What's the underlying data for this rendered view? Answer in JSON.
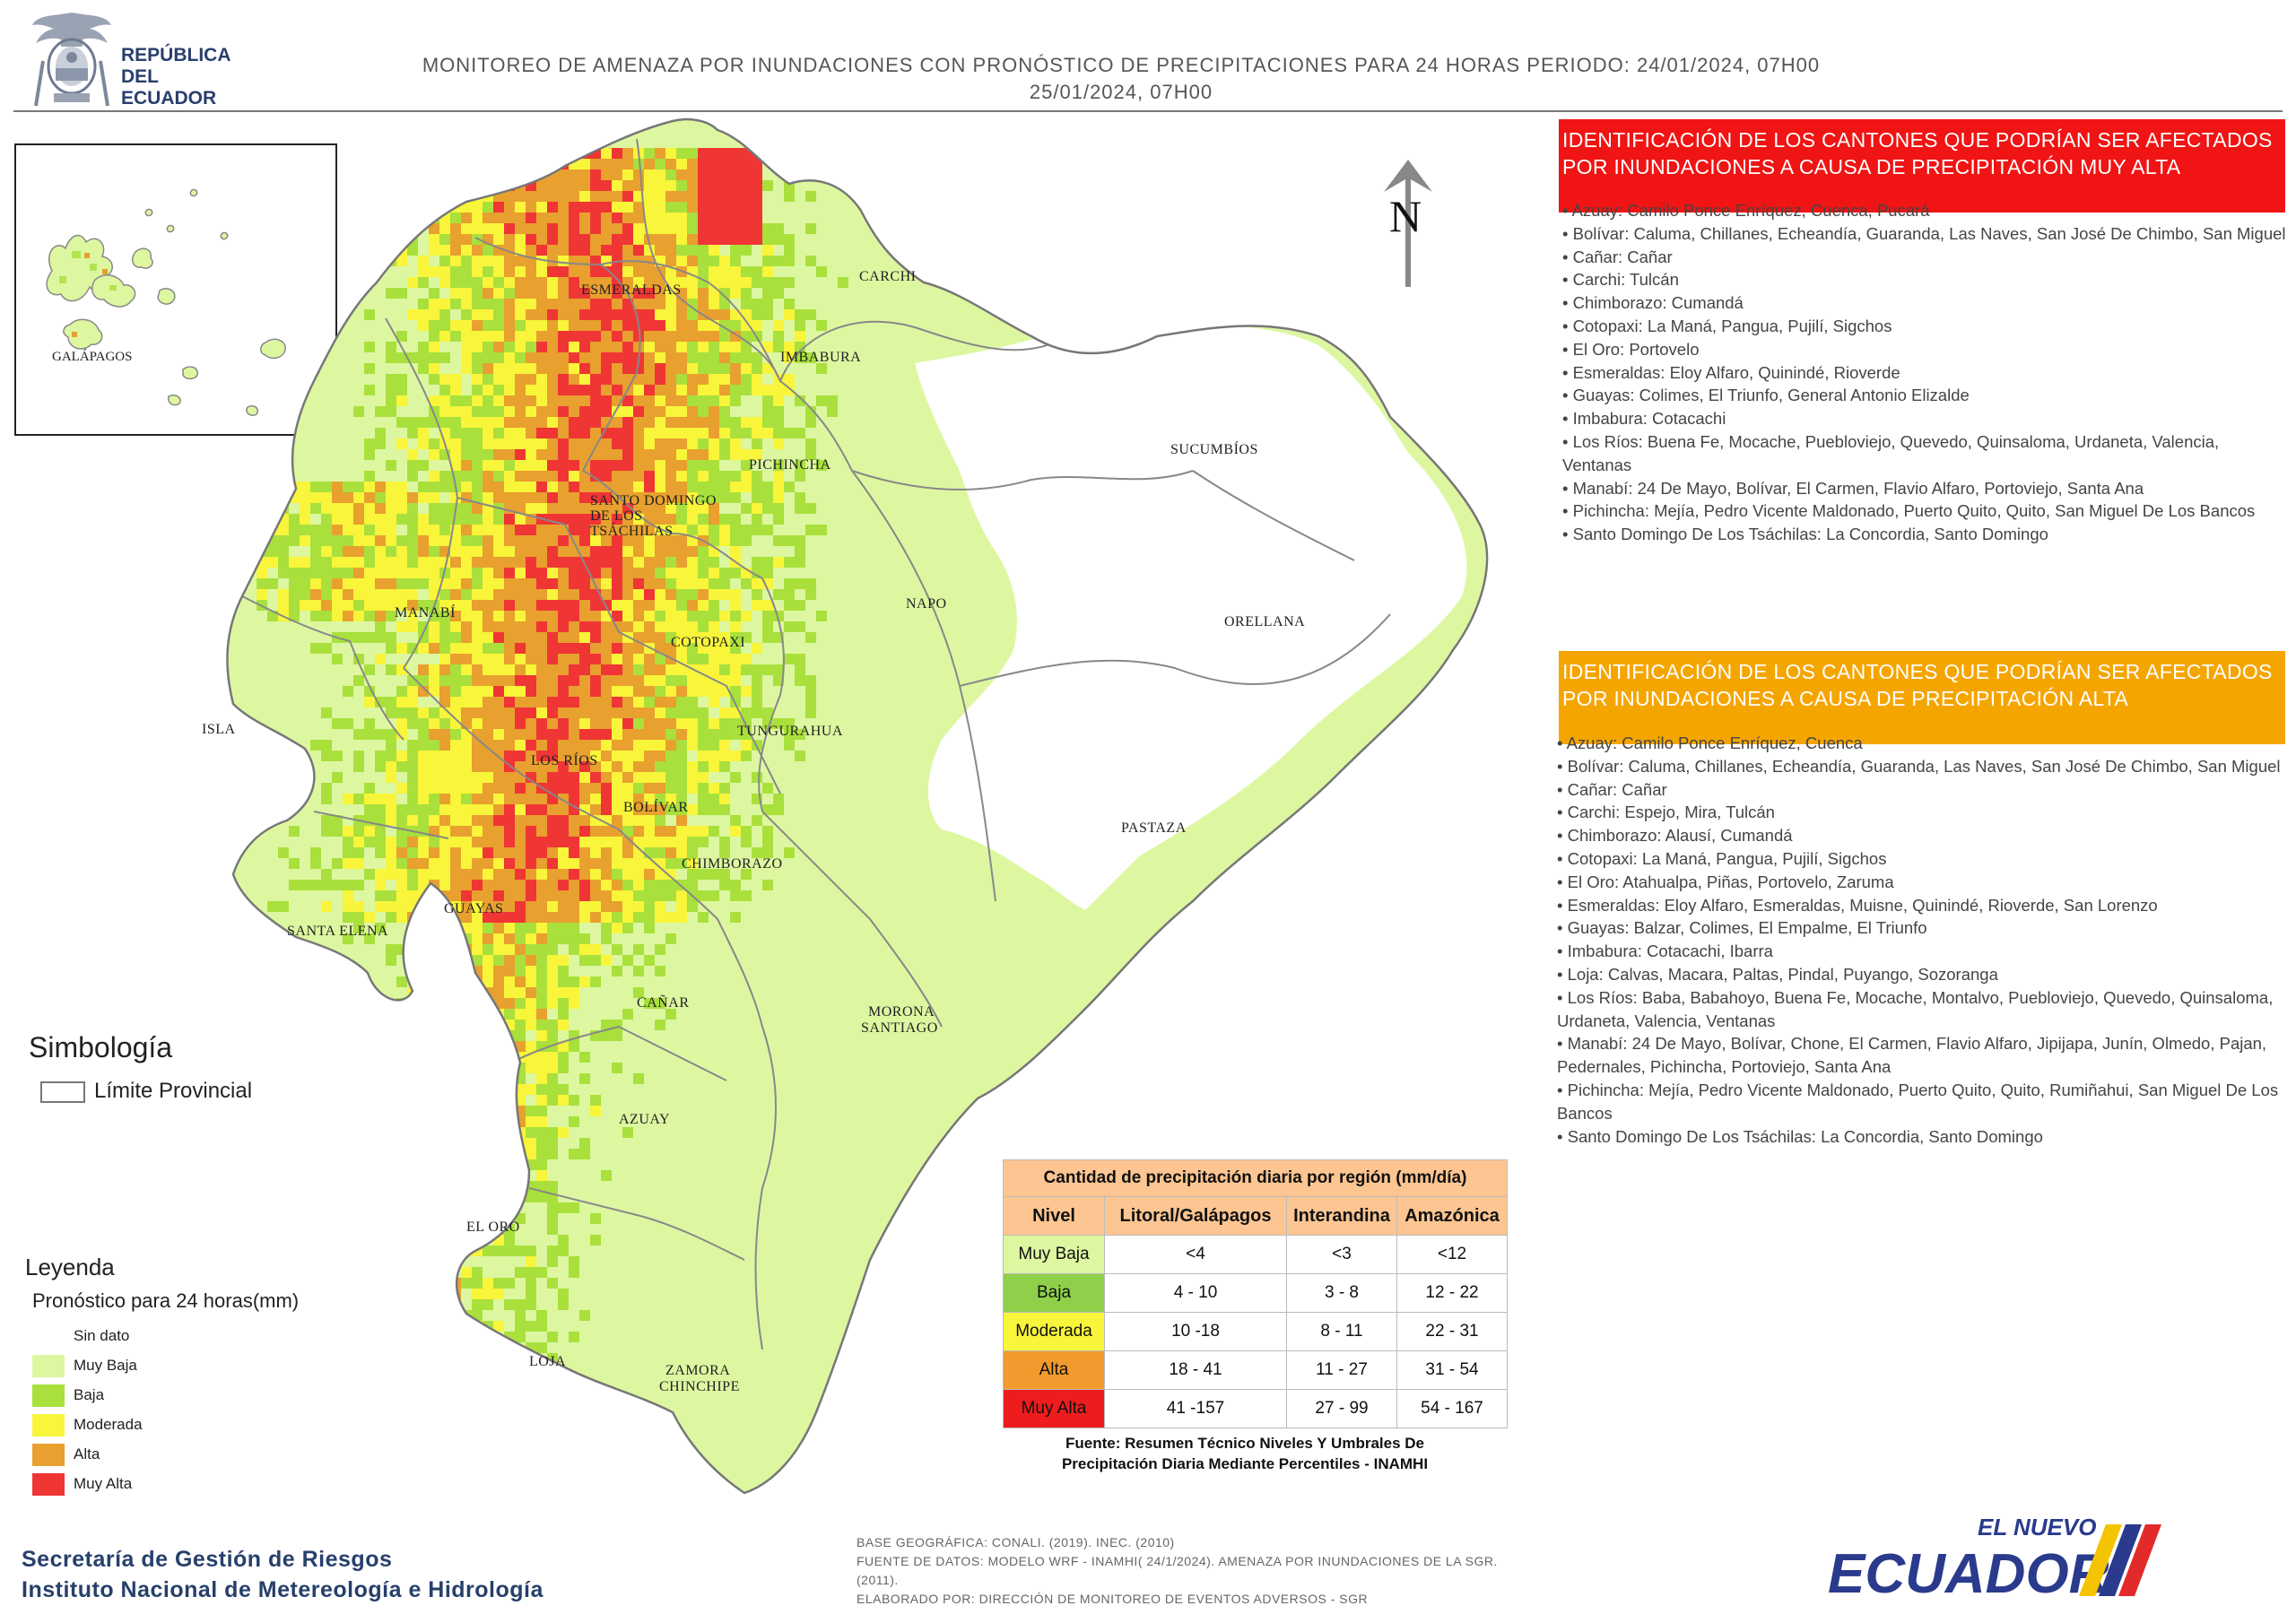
{
  "header": {
    "logo_text_line1": "REPÚBLICA",
    "logo_text_line2": "DEL ECUADOR",
    "title_line1": "MONITOREO DE AMENAZA POR INUNDACIONES  CON PRONÓSTICO DE  PRECIPITACIONES PARA 24 HORAS  PERIODO: 24/01/2024, 07H00",
    "title_line2": "25/01/2024, 07H00"
  },
  "map": {
    "inset_label": "GALÁPAGOS",
    "north_label": "N",
    "province_labels": [
      "ESMERALDAS",
      "CARCHI",
      "IMBABURA",
      "PICHINCHA",
      "SANTO DOMINGO",
      "DE LOS",
      "TSÁCHILAS",
      "SUCUMBÍOS",
      "MANABÍ",
      "COTOPAXI",
      "NAPO",
      "ORELLANA",
      "ISLA",
      "LOS RÍOS",
      "TUNGURAHUA",
      "BOLÍVAR",
      "CHIMBORAZO",
      "PASTAZA",
      "GUAYAS",
      "SANTA ELENA",
      "CAÑAR",
      "MORONA",
      "SANTIAGO",
      "AZUAY",
      "EL ORO",
      "LOJA",
      "ZAMORA",
      "CHINCHIPE"
    ],
    "colors": {
      "muy_baja": "#ddf7a1",
      "baja": "#a9e03c",
      "moderada": "#f8f53a",
      "alta": "#e8a02e",
      "muy_alta": "#f03535",
      "sin_dato": "#ffffff",
      "border": "#888888"
    }
  },
  "panel_red": {
    "title": "IDENTIFICACIÓN DE LOS CANTONES QUE PODRÍAN SER AFECTADOS POR INUNDACIONES  A CAUSA DE PRECIPITACIÓN MUY ALTA",
    "items": [
      "• Azuay: Camilo Ponce Enríquez, Cuenca, Pucará",
      "• Bolívar: Caluma, Chillanes, Echeandía, Guaranda, Las Naves, San José De Chimbo, San Miguel",
      "• Cañar: Cañar",
      "• Carchi: Tulcán",
      "• Chimborazo: Cumandá",
      "• Cotopaxi: La Maná, Pangua, Pujilí, Sigchos",
      "• El Oro: Portovelo",
      "• Esmeraldas: Eloy Alfaro, Quinindé, Rioverde",
      "• Guayas: Colimes, El Triunfo, General Antonio Elizalde",
      "• Imbabura: Cotacachi",
      "• Los Ríos: Buena Fe, Mocache, Puebloviejo, Quevedo, Quinsaloma, Urdaneta, Valencia, Ventanas",
      "• Manabí: 24 De Mayo, Bolívar, El Carmen, Flavio Alfaro, Portoviejo, Santa Ana",
      "• Pichincha: Mejía, Pedro Vicente Maldonado, Puerto Quito, Quito, San Miguel De Los Bancos",
      "• Santo Domingo De Los Tsáchilas: La Concordia, Santo Domingo"
    ]
  },
  "panel_orange": {
    "title": "IDENTIFICACIÓN DE LOS CANTONES QUE  PODRÍAN SER AFECTADOS POR INUNDACIONES  A CAUSA DE PRECIPITACIÓN  ALTA",
    "items": [
      "• Azuay: Camilo Ponce Enríquez, Cuenca",
      "• Bolívar: Caluma, Chillanes, Echeandía, Guaranda, Las Naves, San José De Chimbo, San Miguel",
      "• Cañar: Cañar",
      "• Carchi: Espejo, Mira, Tulcán",
      "• Chimborazo: Alausí, Cumandá",
      "• Cotopaxi: La Maná, Pangua, Pujilí, Sigchos",
      "• El Oro: Atahualpa, Piñas, Portovelo, Zaruma",
      "• Esmeraldas: Eloy Alfaro, Esmeraldas, Muisne, Quinindé, Rioverde, San Lorenzo",
      "• Guayas: Balzar, Colimes, El Empalme, El Triunfo",
      "• Imbabura: Cotacachi, Ibarra",
      "• Loja: Calvas, Macara, Paltas, Pindal, Puyango, Sozoranga",
      "• Los Ríos: Baba, Babahoyo, Buena Fe, Mocache, Montalvo, Puebloviejo, Quevedo, Quinsaloma, Urdaneta, Valencia, Ventanas",
      "• Manabí: 24 De Mayo, Bolívar, Chone, El Carmen, Flavio Alfaro, Jipijapa, Junín, Olmedo, Pajan, Pedernales, Pichincha, Portoviejo, Santa Ana",
      "• Pichincha: Mejía, Pedro Vicente Maldonado, Puerto Quito, Quito, Rumiñahui, San Miguel De Los Bancos",
      "• Santo Domingo De Los Tsáchilas: La Concordia, Santo Domingo"
    ]
  },
  "simbologia": {
    "title": "Simbología",
    "limite_label": "Límite Provincial"
  },
  "leyenda": {
    "title": "Leyenda",
    "subtitle": "Pronóstico para 24 horas(mm)",
    "items": [
      {
        "label": "Sin dato",
        "color": "#ffffff"
      },
      {
        "label": "Muy Baja",
        "color": "#ddf7a1"
      },
      {
        "label": "Baja",
        "color": "#a9e03c"
      },
      {
        "label": "Moderada",
        "color": "#f8f53a"
      },
      {
        "label": "Alta",
        "color": "#e8a02e"
      },
      {
        "label": "Muy Alta",
        "color": "#f03535"
      }
    ]
  },
  "thresholds": {
    "title": "Cantidad de precipitación diaria por región (mm/día)",
    "columns": [
      "Nivel",
      "Litoral/Galápagos",
      "Interandina",
      "Amazónica"
    ],
    "rows": [
      {
        "nivel": "Muy Baja",
        "color": "#ddf7a1",
        "litoral": "<4",
        "interandina": "<3",
        "amazonica": "<12"
      },
      {
        "nivel": "Baja",
        "color": "#8fd04a",
        "litoral": "4 - 10",
        "interandina": "3 - 8",
        "amazonica": "12 - 22"
      },
      {
        "nivel": "Moderada",
        "color": "#f8f53a",
        "litoral": "10 -18",
        "interandina": "8 - 11",
        "amazonica": "22 - 31"
      },
      {
        "nivel": "Alta",
        "color": "#f29a2e",
        "litoral": "18 - 41",
        "interandina": "11 - 27",
        "amazonica": "31 - 54"
      },
      {
        "nivel": "Muy Alta",
        "color": "#ee1c1c",
        "litoral": "41 -157",
        "interandina": "27 - 99",
        "amazonica": "54 - 167"
      }
    ],
    "source_line1": "Fuente: Resumen Técnico Niveles Y Umbrales De",
    "source_line2": "Precipitación Diaria Mediante Percentiles - INAMHI"
  },
  "footer": {
    "org_line1": "Secretaría de Gestión de Riesgos",
    "org_line2": "Instituto Nacional de Metereología e Hidrología",
    "note1": "BASE GEOGRÁFICA: CONALI. (2019). INEC. (2010)",
    "note2": "FUENTE DE DATOS: MODELO WRF - INAMHI( 24/1/2024).  AMENAZA POR INUNDACIONES DE LA SGR. (2011).",
    "note3": "ELABORADO POR: DIRECCIÓN DE MONITOREO DE EVENTOS ADVERSOS - SGR",
    "brand_top": "EL NUEVO",
    "brand_main": "ECUADOR"
  }
}
